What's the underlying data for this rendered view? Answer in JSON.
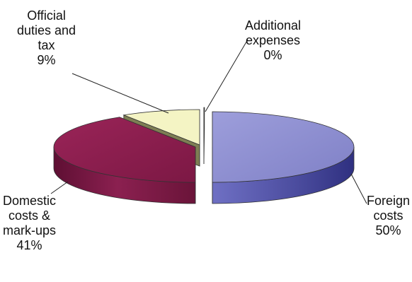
{
  "chart_data": {
    "type": "pie",
    "title": "",
    "style": "3d-exploded",
    "slices": [
      {
        "name": "Foreign costs",
        "value": 50,
        "label": "50%",
        "label_lines": [
          "Foreign",
          "costs",
          "50%"
        ],
        "color": "#8f8fd0",
        "side_color": "#5253a8"
      },
      {
        "name": "Domestic costs & mark-ups",
        "value": 41,
        "label": "41%",
        "label_lines": [
          "Domestic",
          "costs &",
          "mark-ups",
          "41%"
        ],
        "color": "#8e1f4f",
        "side_color": "#7a1742"
      },
      {
        "name": "Official duties and tax",
        "value": 9,
        "label": "9%",
        "label_lines": [
          "Official",
          "duties and",
          "tax",
          "9%"
        ],
        "color": "#f4f4c4",
        "side_color": "#7e7e54"
      },
      {
        "name": "Additional expenses",
        "value": 0,
        "label": "0%",
        "label_lines": [
          "Additional",
          "expenses",
          "0%"
        ],
        "color": "#d8e2ec",
        "side_color": "#9aa6b2"
      }
    ]
  }
}
